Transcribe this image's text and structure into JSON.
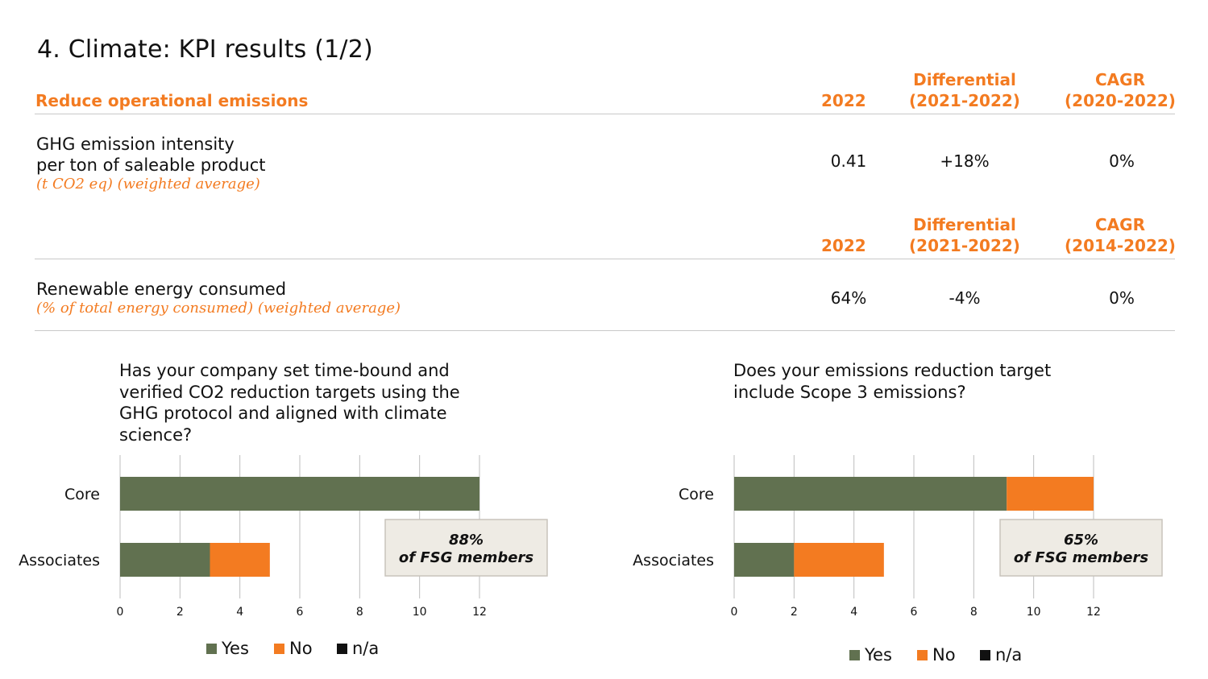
{
  "page": {
    "title": "4. Climate: KPI results (1/2)"
  },
  "colors": {
    "accent": "#f37b21",
    "yes": "#617150",
    "no": "#f37b21",
    "na": "#111111",
    "callout_bg": "#eeebe4"
  },
  "section": {
    "title": "Reduce operational emissions"
  },
  "kpi1": {
    "header": {
      "year": "2022",
      "diff_line1": "Differential",
      "diff_line2": "(2021-2022)",
      "cagr_line1": "CAGR",
      "cagr_line2": "(2020-2022)"
    },
    "label_line1": "GHG emission intensity",
    "label_line2": "per ton of saleable product",
    "unit": "(t CO2 eq) (weighted average)",
    "value": "0.41",
    "differential": "+18%",
    "cagr": "0%"
  },
  "kpi2": {
    "header": {
      "year": "2022",
      "diff_line1": "Differential",
      "diff_line2": "(2021-2022)",
      "cagr_line1": "CAGR",
      "cagr_line2": "(2014-2022)"
    },
    "label_line1": "Renewable energy consumed",
    "unit": "(% of total energy consumed) (weighted average)",
    "value": "64%",
    "differential": "-4%",
    "cagr": "0%"
  },
  "chart_data": [
    {
      "type": "bar",
      "orientation": "horizontal",
      "stacked": true,
      "title_lines": [
        "Has your company set time-bound and",
        "verified CO2 reduction targets using the",
        "GHG protocol and aligned with climate",
        "science?"
      ],
      "categories": [
        "Core",
        "Associates"
      ],
      "series": [
        {
          "name": "Yes",
          "values": [
            12,
            3
          ]
        },
        {
          "name": "No",
          "values": [
            0,
            2
          ]
        },
        {
          "name": "n/a",
          "values": [
            0,
            0
          ]
        }
      ],
      "xlim": [
        0,
        12
      ],
      "xticks": [
        "0",
        "2",
        "4",
        "6",
        "8",
        "10",
        "12"
      ],
      "grid": true,
      "legend": "bottom",
      "callout": {
        "line1": "88%",
        "line2": "of FSG members"
      }
    },
    {
      "type": "bar",
      "orientation": "horizontal",
      "stacked": true,
      "title_lines": [
        "Does your emissions reduction target",
        "include Scope 3 emissions?"
      ],
      "categories": [
        "Core",
        "Associates"
      ],
      "series": [
        {
          "name": "Yes",
          "values": [
            9.1,
            2
          ]
        },
        {
          "name": "No",
          "values": [
            2.9,
            3
          ]
        },
        {
          "name": "n/a",
          "values": [
            0,
            0
          ]
        }
      ],
      "xlim": [
        0,
        12
      ],
      "xticks": [
        "0",
        "2",
        "4",
        "6",
        "8",
        "10",
        "12"
      ],
      "grid": true,
      "legend": "bottom",
      "callout": {
        "line1": "65%",
        "line2": "of FSG members"
      }
    }
  ]
}
